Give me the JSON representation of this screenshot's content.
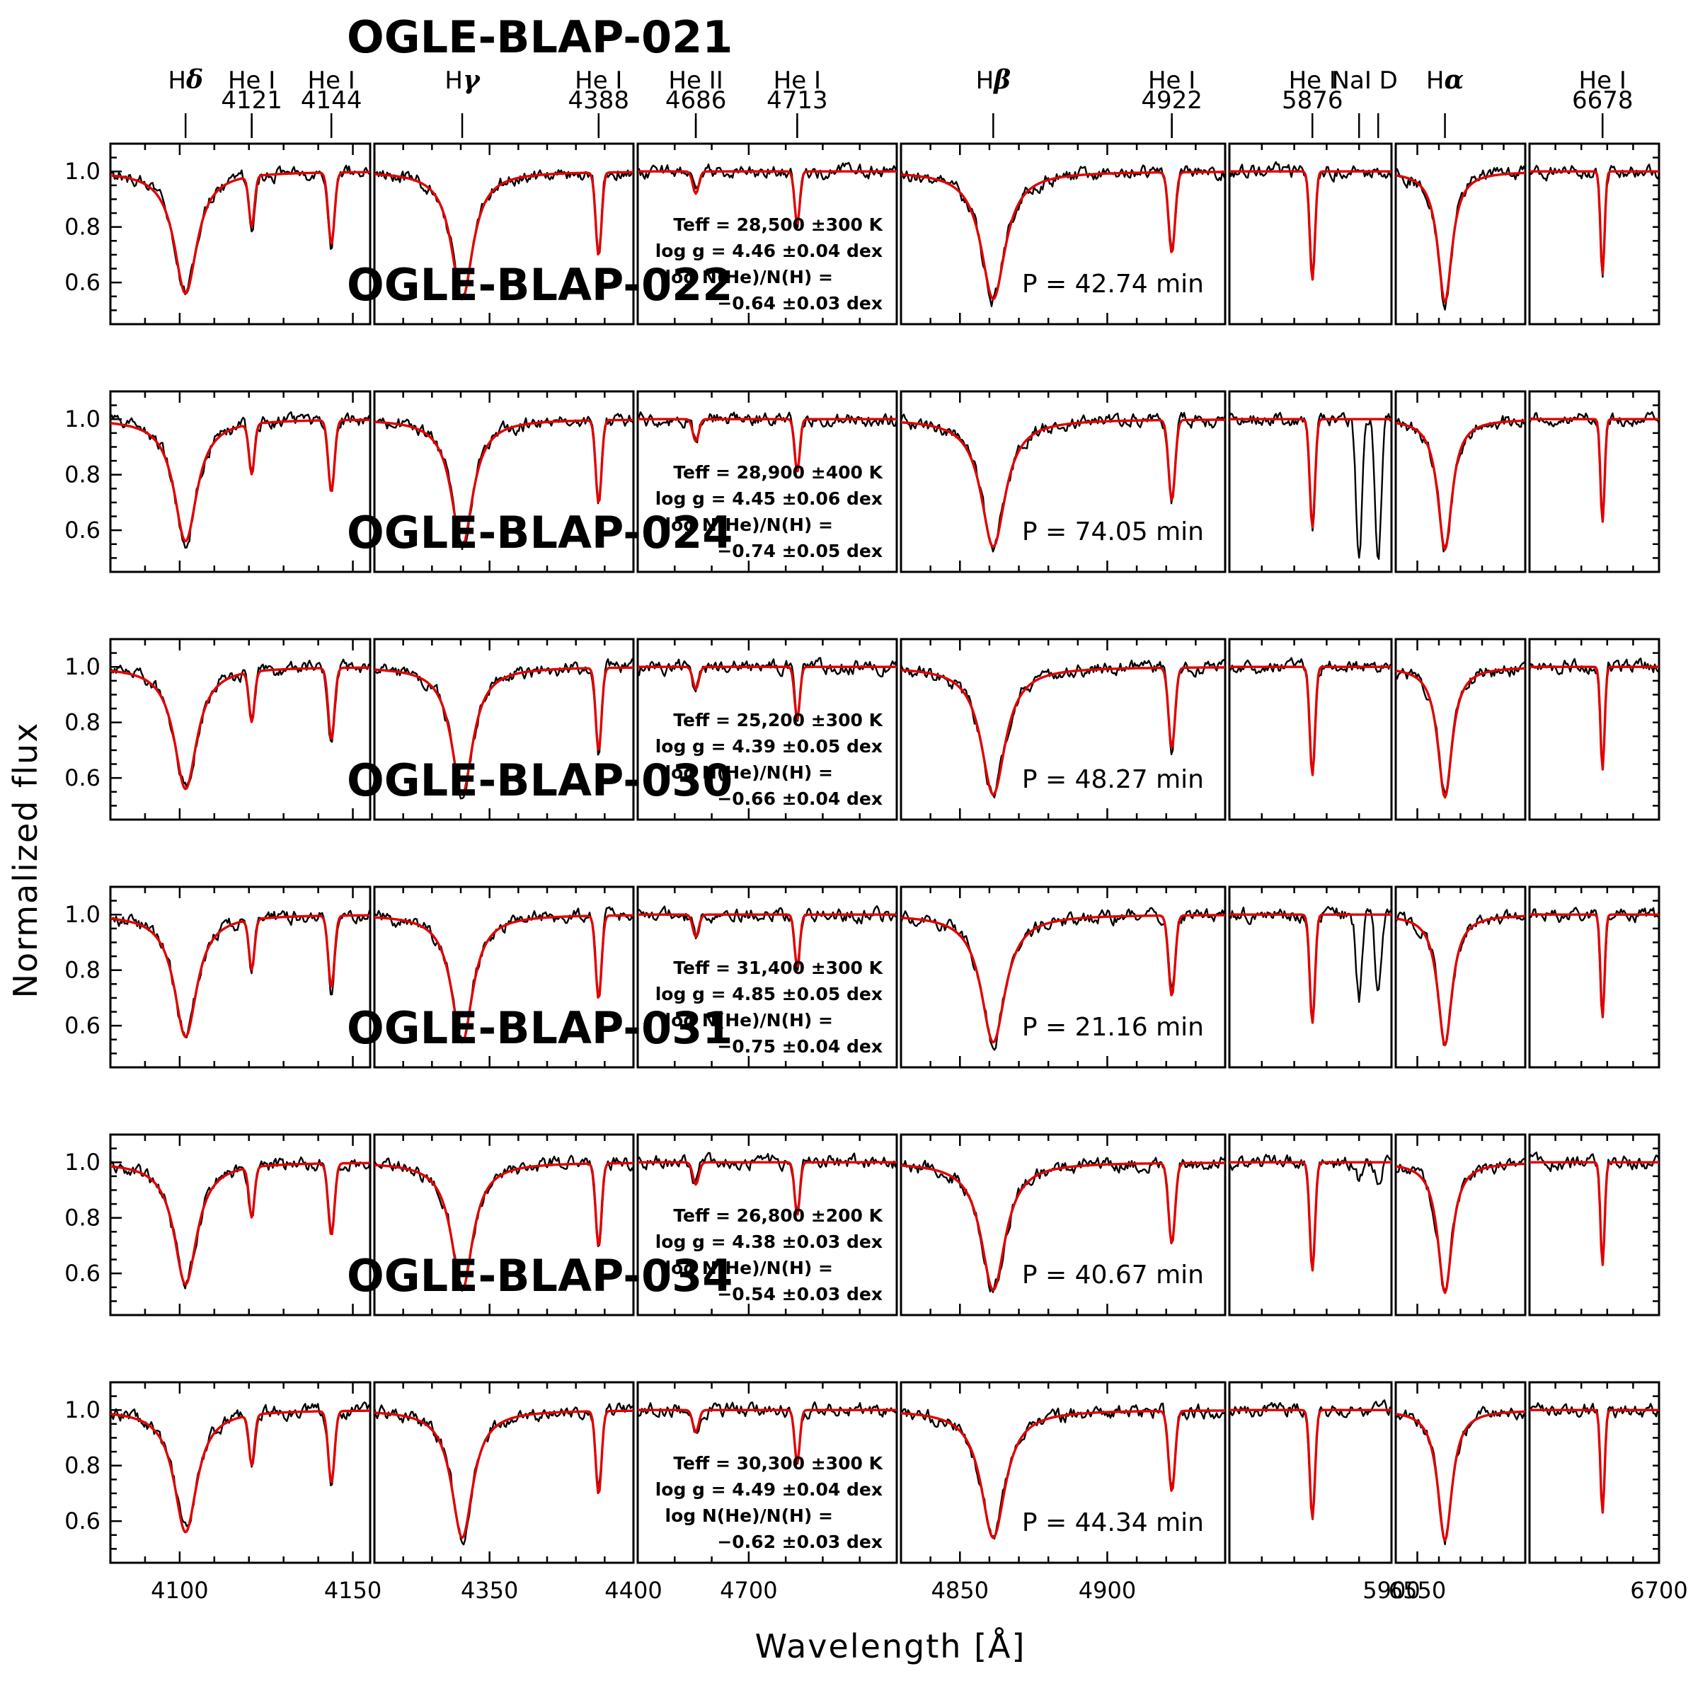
{
  "chart_data": {
    "type": "line",
    "xlabel": "Wavelength [Å]",
    "ylabel": "Normalized flux",
    "ylim": [
      0.45,
      1.1
    ],
    "yticks": [
      0.6,
      0.8,
      1.0
    ],
    "ytick_labels": [
      "0.6",
      "0.8",
      "1.0"
    ],
    "series_legend": {
      "observed": "black",
      "model": "red"
    },
    "colors": {
      "observed": "#000000",
      "model": "#e00000"
    },
    "windows": [
      {
        "id": "w1",
        "xlim": [
          4080,
          4155
        ],
        "xticks": [
          4100,
          4150
        ],
        "xtick_labels": [
          "4100",
          "4150"
        ]
      },
      {
        "id": "w2",
        "xlim": [
          4310,
          4400
        ],
        "xticks": [
          4350,
          4400
        ],
        "xtick_labels": [
          "4350",
          "4400"
        ]
      },
      {
        "id": "w3",
        "xlim": [
          4670,
          4740
        ],
        "xticks": [
          4700
        ],
        "xtick_labels": [
          "4700"
        ]
      },
      {
        "id": "w4",
        "xlim": [
          4830,
          4940
        ],
        "xticks": [
          4850,
          4900
        ],
        "xtick_labels": [
          "4850",
          "4900"
        ]
      },
      {
        "id": "w5",
        "xlim": [
          5850,
          5900
        ],
        "xticks": [
          5900
        ],
        "xtick_labels": [
          "5900"
        ]
      },
      {
        "id": "w6",
        "xlim": [
          6540,
          6600
        ],
        "xticks": [
          6550
        ],
        "xtick_labels": [
          "6550"
        ]
      },
      {
        "id": "w7",
        "xlim": [
          6650,
          6700
        ],
        "xticks": [
          6700
        ],
        "xtick_labels": [
          "6700"
        ]
      }
    ],
    "lines": [
      {
        "label": "Hδ",
        "name": "H",
        "greek": "δ",
        "wave": 4101.7,
        "window": "w1",
        "depth": 0.44,
        "width": 4.0,
        "kind": "balmer"
      },
      {
        "label": "HeI 4121",
        "name": "He I",
        "num": "4121",
        "wave": 4120.8,
        "window": "w1",
        "depth": 0.18,
        "width": 0.8,
        "kind": "he"
      },
      {
        "label": "HeI 4144",
        "name": "He I",
        "num": "4144",
        "wave": 4143.8,
        "window": "w1",
        "depth": 0.26,
        "width": 0.9,
        "kind": "he"
      },
      {
        "label": "Hγ",
        "name": "H",
        "greek": "γ",
        "wave": 4340.5,
        "window": "w2",
        "depth": 0.46,
        "width": 4.5,
        "kind": "balmer"
      },
      {
        "label": "HeI 4388",
        "name": "He I",
        "num": "4388",
        "wave": 4387.9,
        "window": "w2",
        "depth": 0.3,
        "width": 1.0,
        "kind": "he"
      },
      {
        "label": "HeII 4686",
        "name": "He II",
        "num": "4686",
        "wave": 4685.7,
        "window": "w3",
        "depth": 0.08,
        "width": 0.8,
        "kind": "he"
      },
      {
        "label": "HeI 4713",
        "name": "He I",
        "num": "4713",
        "wave": 4713.1,
        "window": "w3",
        "depth": 0.19,
        "width": 0.7,
        "kind": "he"
      },
      {
        "label": "Hβ",
        "name": "H",
        "greek": "β",
        "wave": 4861.3,
        "window": "w4",
        "depth": 0.46,
        "width": 5.0,
        "kind": "balmer"
      },
      {
        "label": "HeI 4922",
        "name": "He I",
        "num": "4922",
        "wave": 4921.9,
        "window": "w4",
        "depth": 0.29,
        "width": 1.1,
        "kind": "he"
      },
      {
        "label": "HeI 5876",
        "name": "He I",
        "num": "5876",
        "wave": 5875.6,
        "window": "w5",
        "depth": 0.39,
        "width": 0.8,
        "kind": "he"
      },
      {
        "label": "NaI D",
        "name": "NaI D",
        "waves": [
          5890.0,
          5895.9
        ],
        "window": "w5",
        "kind": "na"
      },
      {
        "label": "Hα",
        "name": "H",
        "greek": "α",
        "wave": 6562.8,
        "window": "w6",
        "depth": 0.47,
        "width": 4.0,
        "kind": "balmer"
      },
      {
        "label": "HeI 6678",
        "name": "He I",
        "num": "6678",
        "wave": 6678.2,
        "window": "w7",
        "depth": 0.37,
        "width": 0.8,
        "kind": "he"
      }
    ],
    "stars": [
      {
        "name": "OGLE-BLAP-021",
        "teff": "28,500",
        "teff_err": "±300 K",
        "logg": "4.46",
        "logg_err": "±0.04 dex",
        "logn": "−0.64",
        "logn_err": "±0.03 dex",
        "period": "42.74",
        "period_unit": "min",
        "seed": 21,
        "na_depth": 0.0
      },
      {
        "name": "OGLE-BLAP-022",
        "teff": "28,900",
        "teff_err": "±400 K",
        "logg": "4.45",
        "logg_err": "±0.06 dex",
        "logn": "−0.74",
        "logn_err": "±0.05 dex",
        "period": "74.05",
        "period_unit": "min",
        "seed": 22,
        "na_depth": 0.52
      },
      {
        "name": "OGLE-BLAP-024",
        "teff": "25,200",
        "teff_err": "±300 K",
        "logg": "4.39",
        "logg_err": "±0.05 dex",
        "logn": "−0.66",
        "logn_err": "±0.04 dex",
        "period": "48.27",
        "period_unit": "min",
        "seed": 24,
        "na_depth": 0.0
      },
      {
        "name": "OGLE-BLAP-030",
        "teff": "31,400",
        "teff_err": "±300 K",
        "logg": "4.85",
        "logg_err": "±0.05 dex",
        "logn": "−0.75",
        "logn_err": "±0.04 dex",
        "period": "21.16",
        "period_unit": "min",
        "seed": 30,
        "na_depth": 0.3
      },
      {
        "name": "OGLE-BLAP-031",
        "teff": "26,800",
        "teff_err": "±200 K",
        "logg": "4.38",
        "logg_err": "±0.03 dex",
        "logn": "−0.54",
        "logn_err": "±0.03 dex",
        "period": "40.67",
        "period_unit": "min",
        "seed": 31,
        "na_depth": 0.06
      },
      {
        "name": "OGLE-BLAP-034",
        "teff": "30,300",
        "teff_err": "±300 K",
        "logg": "4.49",
        "logg_err": "±0.04 dex",
        "logn": "−0.62",
        "logn_err": "±0.03 dex",
        "period": "44.34",
        "period_unit": "min",
        "seed": 34,
        "na_depth": 0.0
      }
    ],
    "param_labels": {
      "teff": "Teff",
      "logg_prefix": "log",
      "logg_var": "g",
      "logn_prefix": "log",
      "logn_var": "N",
      "logn_mid": "(He)/",
      "logn_end": "(H) =",
      "period_var": "P"
    }
  }
}
